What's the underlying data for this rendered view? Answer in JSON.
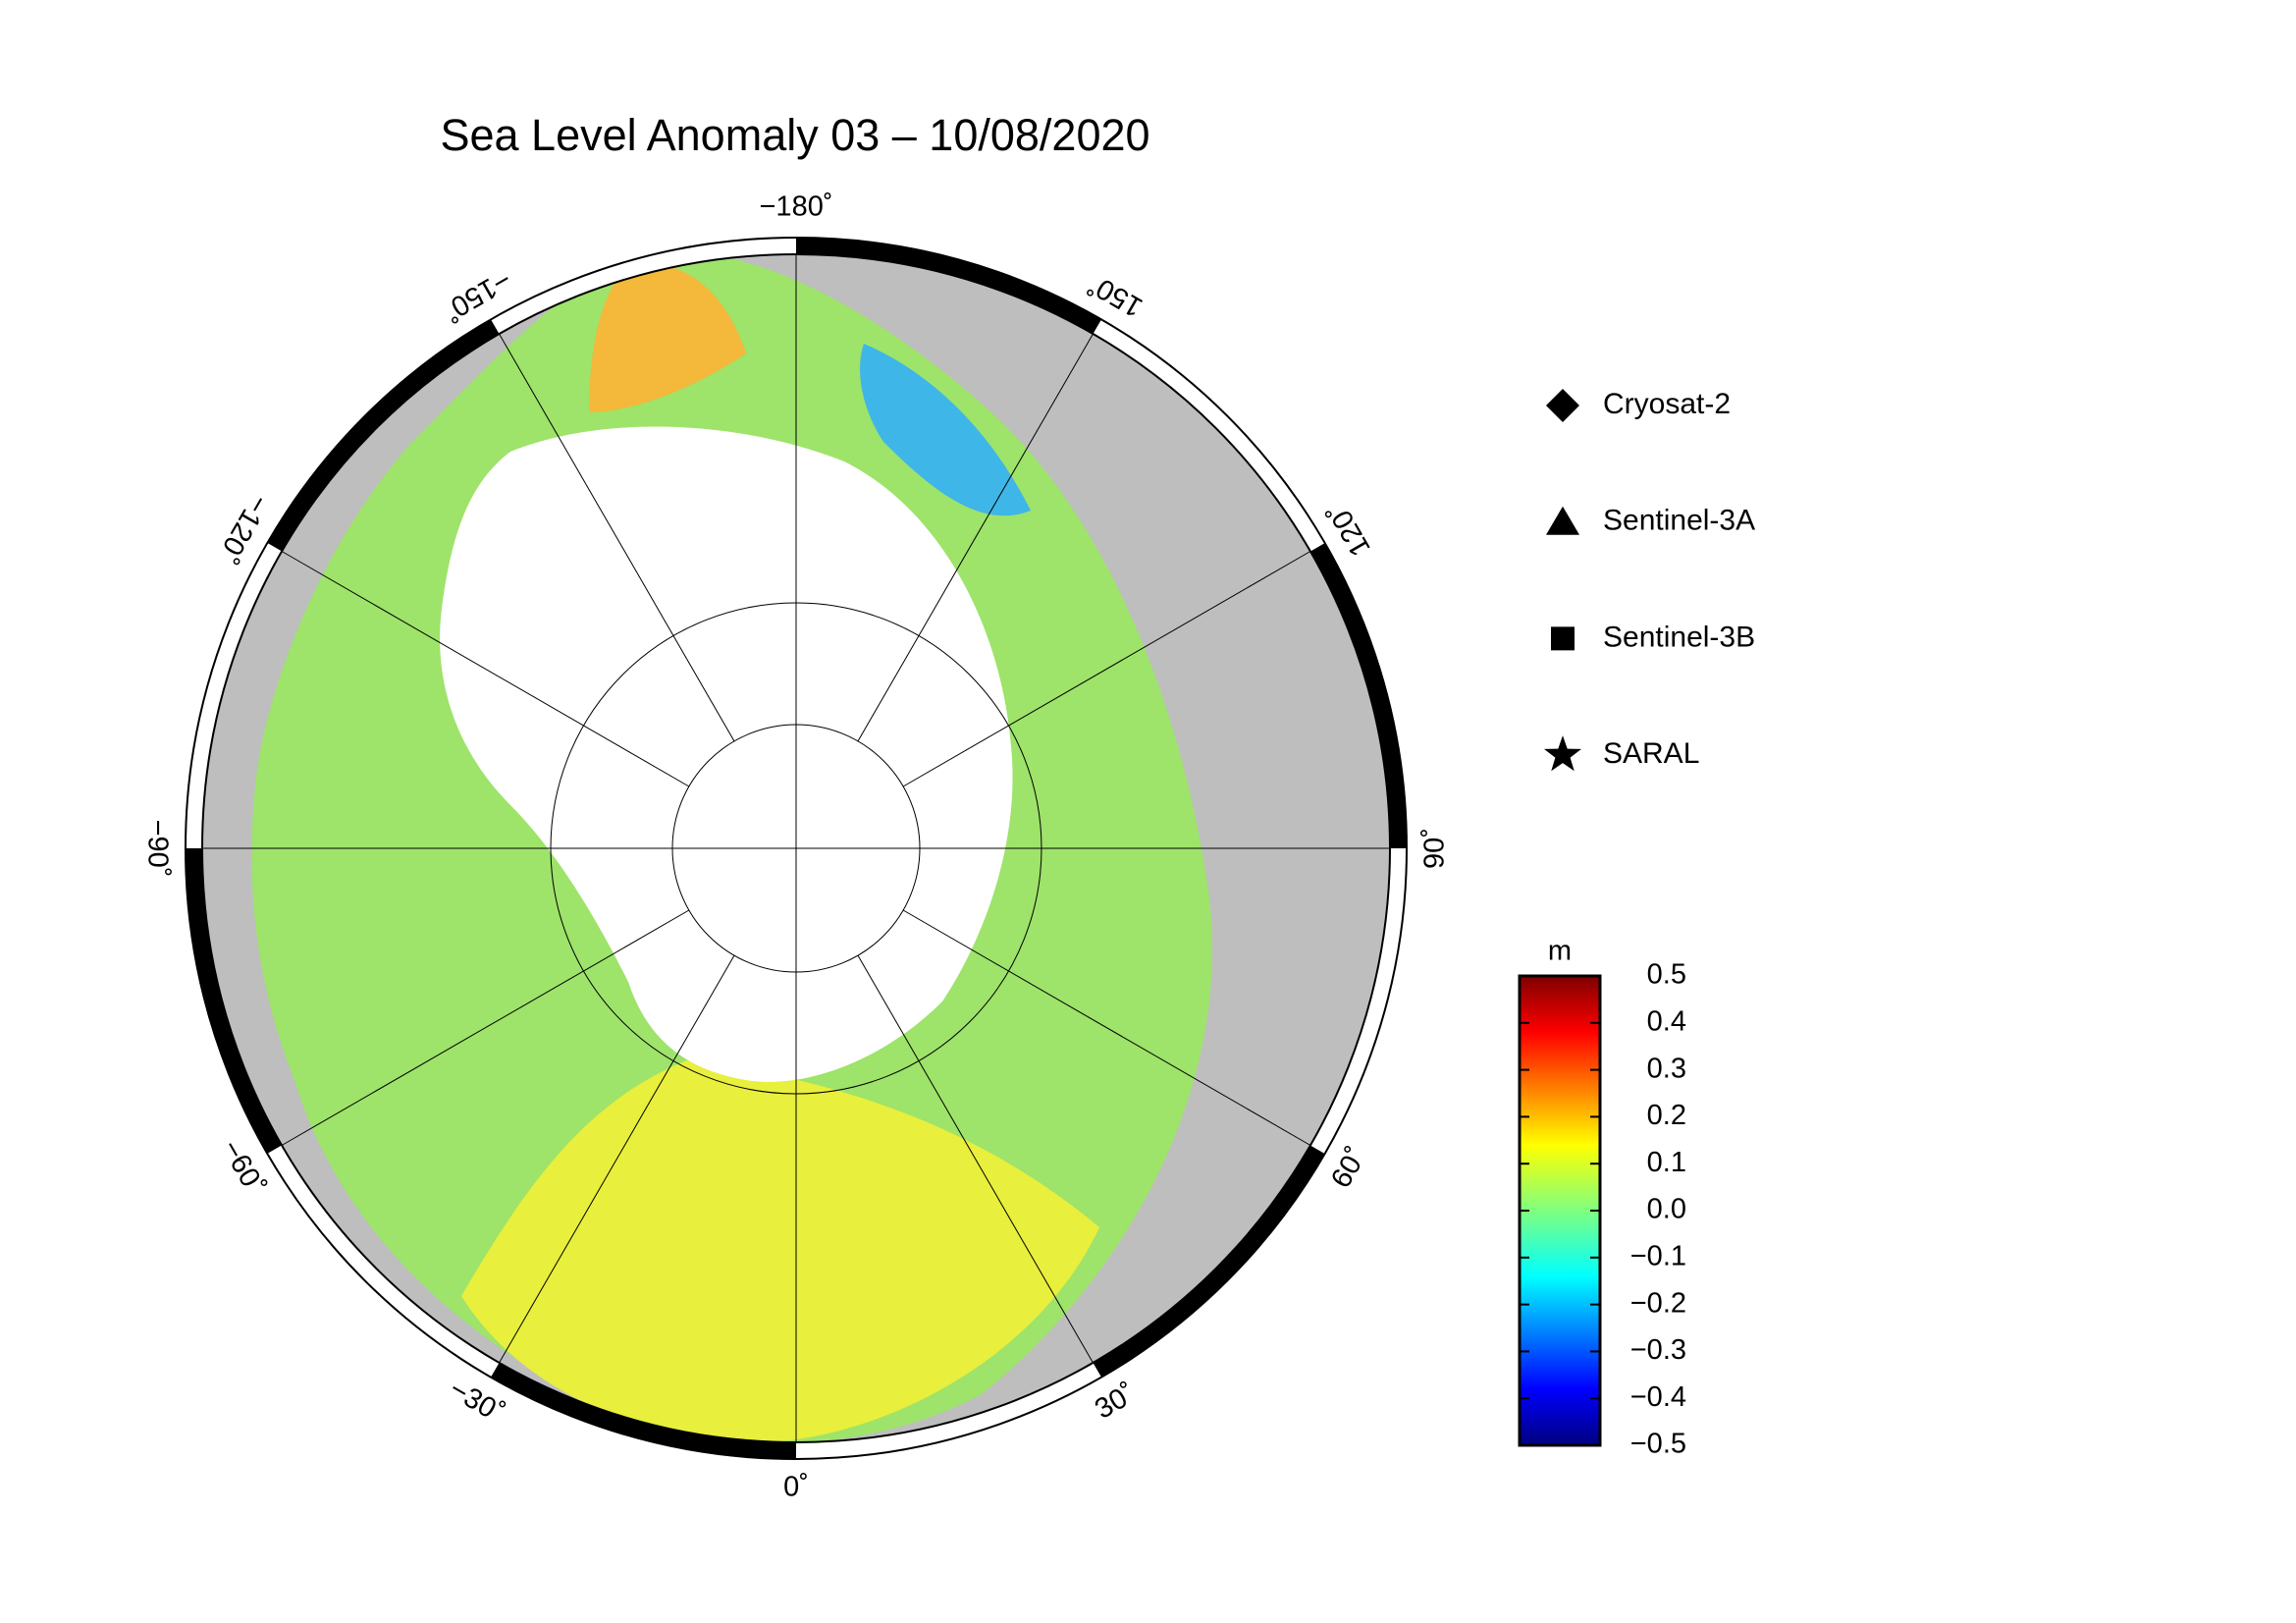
{
  "map": {
    "title": "Sea Level Anomaly 03 – 10/08/2020",
    "longitude_labels": [
      {
        "value": -180,
        "label": "−180˚"
      },
      {
        "value": 150,
        "label": "150˚"
      },
      {
        "value": 120,
        "label": "120˚"
      },
      {
        "value": 90,
        "label": "90˚"
      },
      {
        "value": 60,
        "label": "60˚"
      },
      {
        "value": 30,
        "label": "30˚"
      },
      {
        "value": 0,
        "label": "0˚"
      },
      {
        "value": -30,
        "label": "−30˚"
      },
      {
        "value": -60,
        "label": "−60˚"
      },
      {
        "value": -90,
        "label": "−90˚"
      },
      {
        "value": -120,
        "label": "−120˚"
      },
      {
        "value": -150,
        "label": "−150˚"
      }
    ],
    "legend": [
      {
        "label": "Cryosat-2",
        "marker": "diamond"
      },
      {
        "label": "Sentinel-3A",
        "marker": "triangle"
      },
      {
        "label": "Sentinel-3B",
        "marker": "square"
      },
      {
        "label": "SARAL",
        "marker": "star"
      }
    ],
    "colorbar": {
      "unit": "m",
      "lim": [
        -0.5,
        0.5
      ],
      "ticks": [
        0.5,
        0.4,
        0.3,
        0.2,
        0.1,
        {
          "value": 0.0,
          "label": "0.0"
        },
        {
          "value": -0.1,
          "label": "−0.1"
        },
        {
          "value": -0.2,
          "label": "−0.2"
        },
        {
          "value": -0.3,
          "label": "−0.3"
        },
        {
          "value": -0.4,
          "label": "−0.4"
        },
        {
          "value": -0.5,
          "label": "−0.5"
        }
      ]
    }
  }
}
